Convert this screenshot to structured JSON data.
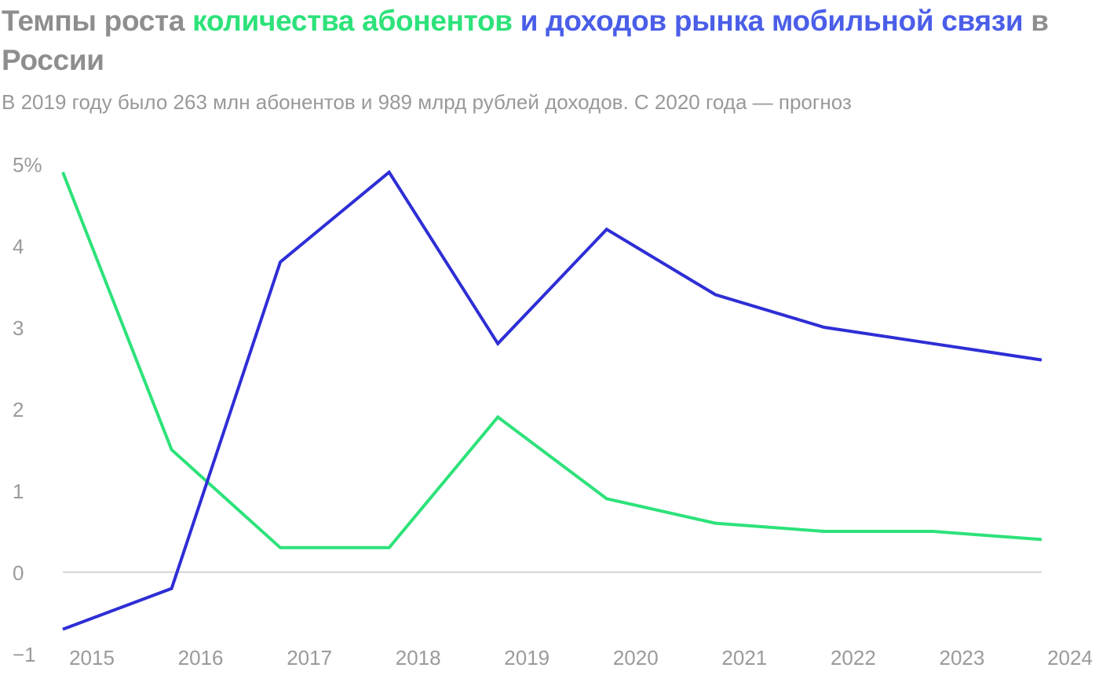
{
  "title": {
    "part1": "Темпы роста ",
    "part2": "количества абонентов",
    "part3": " и доходов рынка мобильной связи",
    "part4": " в России"
  },
  "subtitle": "В 2019 году было 263 млн абонентов и 989 млрд рублей доходов. С 2020 года — прогноз",
  "colors": {
    "title_gray": "#8e8e8e",
    "subscribers": "#2de27a",
    "revenue": "#2e2ed6",
    "revenue_title": "#4a5ee8",
    "axis_text": "#9a9a9a",
    "zero_line": "#c8c8c8"
  },
  "chart_data": {
    "type": "line",
    "x": [
      "2015",
      "2016",
      "2017",
      "2018",
      "2019",
      "2020",
      "2021",
      "2022",
      "2023",
      "2024"
    ],
    "y_ticks": [
      "5%",
      "4",
      "3",
      "2",
      "1",
      "0",
      "−1"
    ],
    "ylim": [
      -1,
      5
    ],
    "series": [
      {
        "name": "количества абонентов",
        "color": "#2de27a",
        "values": [
          4.9,
          1.5,
          0.3,
          0.3,
          1.9,
          0.9,
          0.6,
          0.5,
          0.5,
          0.4
        ]
      },
      {
        "name": "доходов рынка мобильной связи",
        "color": "#2e2ed6",
        "values": [
          -0.7,
          -0.2,
          3.8,
          4.9,
          2.8,
          4.2,
          3.4,
          3.0,
          2.8,
          2.6
        ]
      }
    ]
  }
}
